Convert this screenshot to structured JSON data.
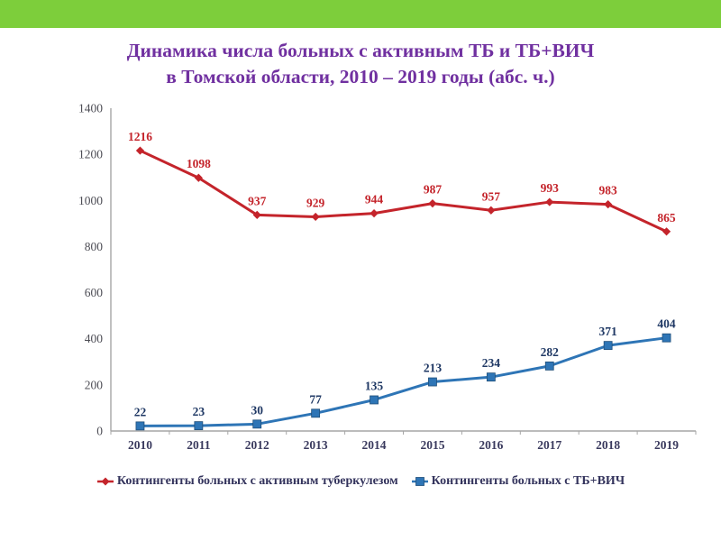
{
  "top_bar": {
    "color": "#7DCE3B"
  },
  "title": {
    "line1": "Динамика числа больных с активным ТБ и ТБ+ВИЧ",
    "line2": "в Томской области, 2010 – 2019 годы (абс. ч.)",
    "color": "#7030A0"
  },
  "chart_data": {
    "type": "line",
    "title": "Динамика числа больных с активным ТБ и ТБ+ВИЧ в Томской области, 2010 – 2019 годы (абс. ч.)",
    "categories": [
      "2010",
      "2011",
      "2012",
      "2013",
      "2014",
      "2015",
      "2016",
      "2017",
      "2018",
      "2019"
    ],
    "series": [
      {
        "name": "Контингенты больных с активным туберкулезом",
        "values": [
          1216,
          1098,
          937,
          929,
          944,
          987,
          957,
          993,
          983,
          865
        ],
        "color": "#C4242B",
        "label_color": "#C4242B",
        "marker": "diamond"
      },
      {
        "name": "Контингенты больных с ТБ+ВИЧ",
        "values": [
          22,
          23,
          30,
          77,
          135,
          213,
          234,
          282,
          371,
          404
        ],
        "color": "#2E75B6",
        "label_color": "#1F3864",
        "marker": "square"
      }
    ],
    "xlabel": "",
    "ylabel": "",
    "ylim": [
      0,
      1400
    ],
    "y_ticks": [
      0,
      200,
      400,
      600,
      800,
      1000,
      1200,
      1400
    ],
    "grid": false,
    "legend_position": "bottom",
    "axis_color": "#A6A6A6",
    "x_tick_label_color": "#3A3A5E",
    "y_tick_label_color": "#4D4D55"
  }
}
